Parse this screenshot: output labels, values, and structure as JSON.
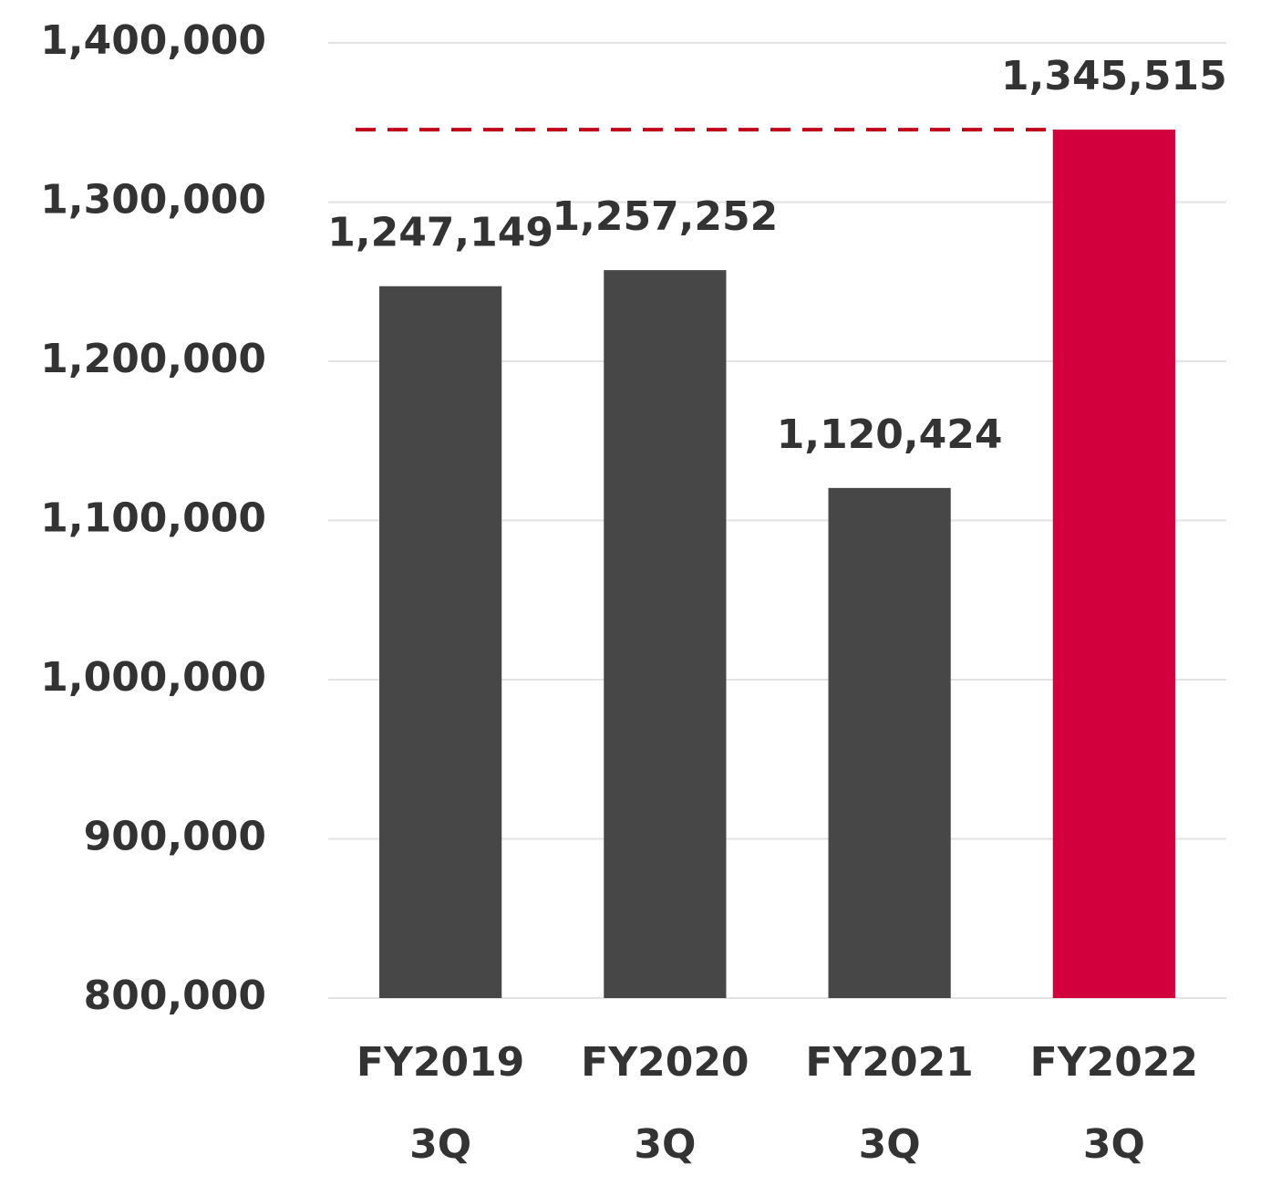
{
  "chart_data": {
    "type": "bar",
    "categories": [
      "FY2019\n3Q",
      "FY2020\n3Q",
      "FY2021\n3Q",
      "FY2022\n3Q"
    ],
    "values": [
      1247149,
      1257252,
      1120424,
      1345515
    ],
    "value_labels": [
      "1,247,149",
      "1,257,252",
      "1,120,424",
      "1,345,515"
    ],
    "colors": [
      "#474747",
      "#474747",
      "#474747",
      "#d2003c"
    ],
    "ylim": [
      800000,
      1400000
    ],
    "yticks": [
      {
        "value": 800000,
        "label": "800,000"
      },
      {
        "value": 900000,
        "label": "900,000"
      },
      {
        "value": 1000000,
        "label": "1,000,000"
      },
      {
        "value": 1100000,
        "label": "1,100,000"
      },
      {
        "value": 1200000,
        "label": "1,200,000"
      },
      {
        "value": 1300000,
        "label": "1,300,000"
      },
      {
        "value": 1400000,
        "label": "1,400,000"
      }
    ],
    "grid": true
  }
}
